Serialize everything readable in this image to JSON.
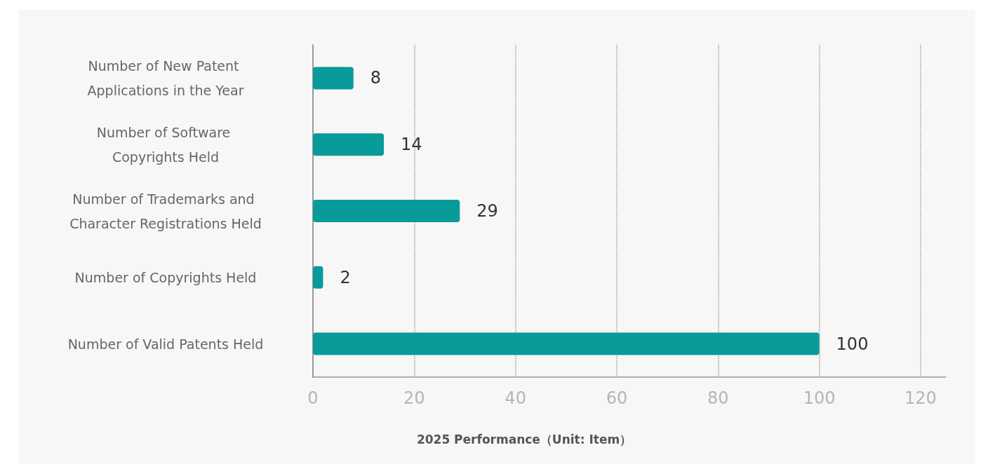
{
  "chart_data": {
    "type": "bar",
    "orientation": "horizontal",
    "xlabel": "2025 Performance（Unit: Item）",
    "categories": [
      "Number of New Patent Applications in the Year",
      "Number of Software Copyrights Held",
      "Number of Trademarks and Character Registrations Held",
      "Number of Copyrights Held",
      "Number of Valid Patents Held"
    ],
    "values": [
      8,
      14,
      29,
      2,
      100
    ],
    "color": "#089b9a",
    "xlim": [
      0,
      125
    ],
    "xticks": [
      0,
      20,
      40,
      60,
      80,
      100,
      120
    ],
    "grid": "x",
    "data_labels": true
  }
}
